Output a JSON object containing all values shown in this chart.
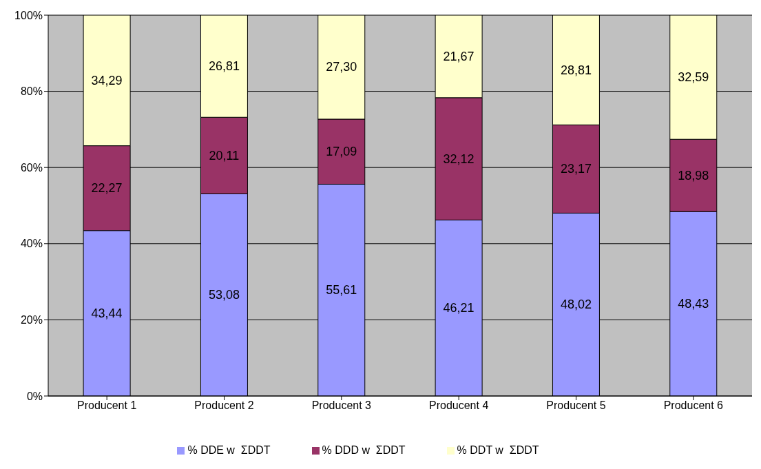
{
  "chart_data": {
    "type": "bar",
    "stacked": true,
    "categories": [
      "Producent 1",
      "Producent 2",
      "Producent 3",
      "Producent 4",
      "Producent 5",
      "Producent 6"
    ],
    "series": [
      {
        "name": "% DDE w  ΣDDT",
        "color": "#9999ff",
        "values": [
          43.44,
          53.08,
          55.61,
          46.21,
          48.02,
          48.43
        ],
        "value_labels": [
          "43,44",
          "53,08",
          "55,61",
          "46,21",
          "48,02",
          "48,43"
        ]
      },
      {
        "name": "% DDD w  ΣDDT",
        "color": "#993366",
        "values": [
          22.27,
          20.11,
          17.09,
          32.12,
          23.17,
          18.98
        ],
        "value_labels": [
          "22,27",
          "20,11",
          "17,09",
          "32,12",
          "23,17",
          "18,98"
        ]
      },
      {
        "name": "% DDT w  ΣDDT",
        "color": "#ffffcc",
        "values": [
          34.29,
          26.81,
          27.3,
          21.67,
          28.81,
          32.59
        ],
        "value_labels": [
          "34,29",
          "26,81",
          "27,30",
          "21,67",
          "28,81",
          "32,59"
        ]
      }
    ],
    "ylim": [
      0,
      100
    ],
    "yticks": [
      {
        "value": 0,
        "label": "0%"
      },
      {
        "value": 20,
        "label": "20%"
      },
      {
        "value": 40,
        "label": "40%"
      },
      {
        "value": 60,
        "label": "60%"
      },
      {
        "value": 80,
        "label": "80%"
      },
      {
        "value": 100,
        "label": "100%"
      }
    ],
    "grid": "y",
    "legend": "bottom"
  }
}
